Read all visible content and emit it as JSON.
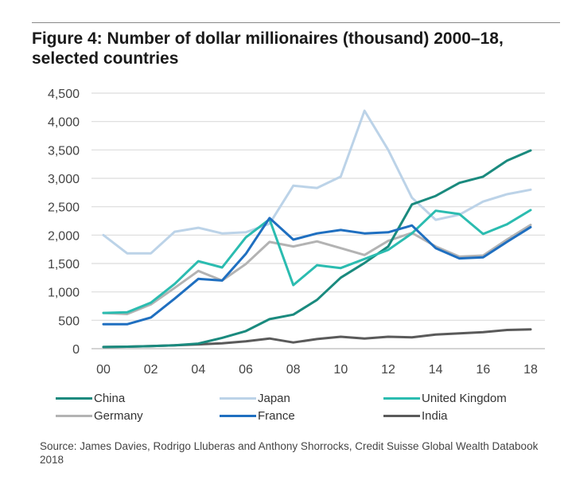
{
  "chart_data": {
    "type": "line",
    "title": "Figure 4: Number of dollar millionaires (thousand) 2000–18, selected countries",
    "xlabel": "",
    "ylabel": "",
    "x": [
      2000,
      2001,
      2002,
      2003,
      2004,
      2005,
      2006,
      2007,
      2008,
      2009,
      2010,
      2011,
      2012,
      2013,
      2014,
      2015,
      2016,
      2017,
      2018
    ],
    "x_tick_labels": [
      "00",
      "02",
      "04",
      "06",
      "08",
      "10",
      "12",
      "14",
      "16",
      "18"
    ],
    "y_tick_labels": [
      "0",
      "500",
      "1,000",
      "1,500",
      "2,000",
      "2,500",
      "3,000",
      "3,500",
      "4,000",
      "4,500"
    ],
    "ylim": [
      0,
      4500
    ],
    "grid": true,
    "legend_position": "bottom",
    "series": [
      {
        "name": "China",
        "color": "#1a8a7e",
        "values": [
          30,
          35,
          45,
          60,
          90,
          190,
          310,
          520,
          600,
          860,
          1250,
          1510,
          1800,
          2540,
          2690,
          2920,
          3030,
          3310,
          3490
        ]
      },
      {
        "name": "Japan",
        "color": "#bcd3e8",
        "values": [
          2000,
          1680,
          1680,
          2060,
          2130,
          2030,
          2050,
          2200,
          2870,
          2830,
          3030,
          4190,
          3500,
          2660,
          2270,
          2360,
          2590,
          2720,
          2800
        ]
      },
      {
        "name": "United Kingdom",
        "color": "#2bbcb0",
        "values": [
          630,
          640,
          810,
          1140,
          1540,
          1430,
          1960,
          2280,
          1120,
          1470,
          1420,
          1580,
          1740,
          2030,
          2430,
          2370,
          2020,
          2190,
          2440
        ]
      },
      {
        "name": "Germany",
        "color": "#b3b3b3",
        "values": [
          630,
          610,
          780,
          1070,
          1370,
          1200,
          1490,
          1880,
          1800,
          1890,
          1770,
          1650,
          1900,
          2040,
          1800,
          1620,
          1640,
          1920,
          2180
        ]
      },
      {
        "name": "France",
        "color": "#1f6fc0",
        "values": [
          430,
          430,
          550,
          880,
          1230,
          1200,
          1670,
          2300,
          1920,
          2030,
          2090,
          2030,
          2050,
          2170,
          1770,
          1590,
          1610,
          1880,
          2140
        ]
      },
      {
        "name": "India",
        "color": "#5a5a5a",
        "values": [
          30,
          35,
          45,
          60,
          75,
          95,
          130,
          180,
          110,
          170,
          210,
          180,
          210,
          200,
          250,
          270,
          290,
          330,
          340
        ]
      }
    ]
  },
  "figure": {
    "title": "Figure 4: Number of dollar millionaires (thousand) 2000–18, selected countries",
    "source": "Source: James Davies, Rodrigo Lluberas and Anthony Shorrocks, Credit Suisse Global Wealth Databook 2018"
  },
  "legend": [
    {
      "label": "China",
      "color": "#1a8a7e"
    },
    {
      "label": "Japan",
      "color": "#bcd3e8"
    },
    {
      "label": "United Kingdom",
      "color": "#2bbcb0"
    },
    {
      "label": "Germany",
      "color": "#b3b3b3"
    },
    {
      "label": "France",
      "color": "#1f6fc0"
    },
    {
      "label": "India",
      "color": "#5a5a5a"
    }
  ]
}
